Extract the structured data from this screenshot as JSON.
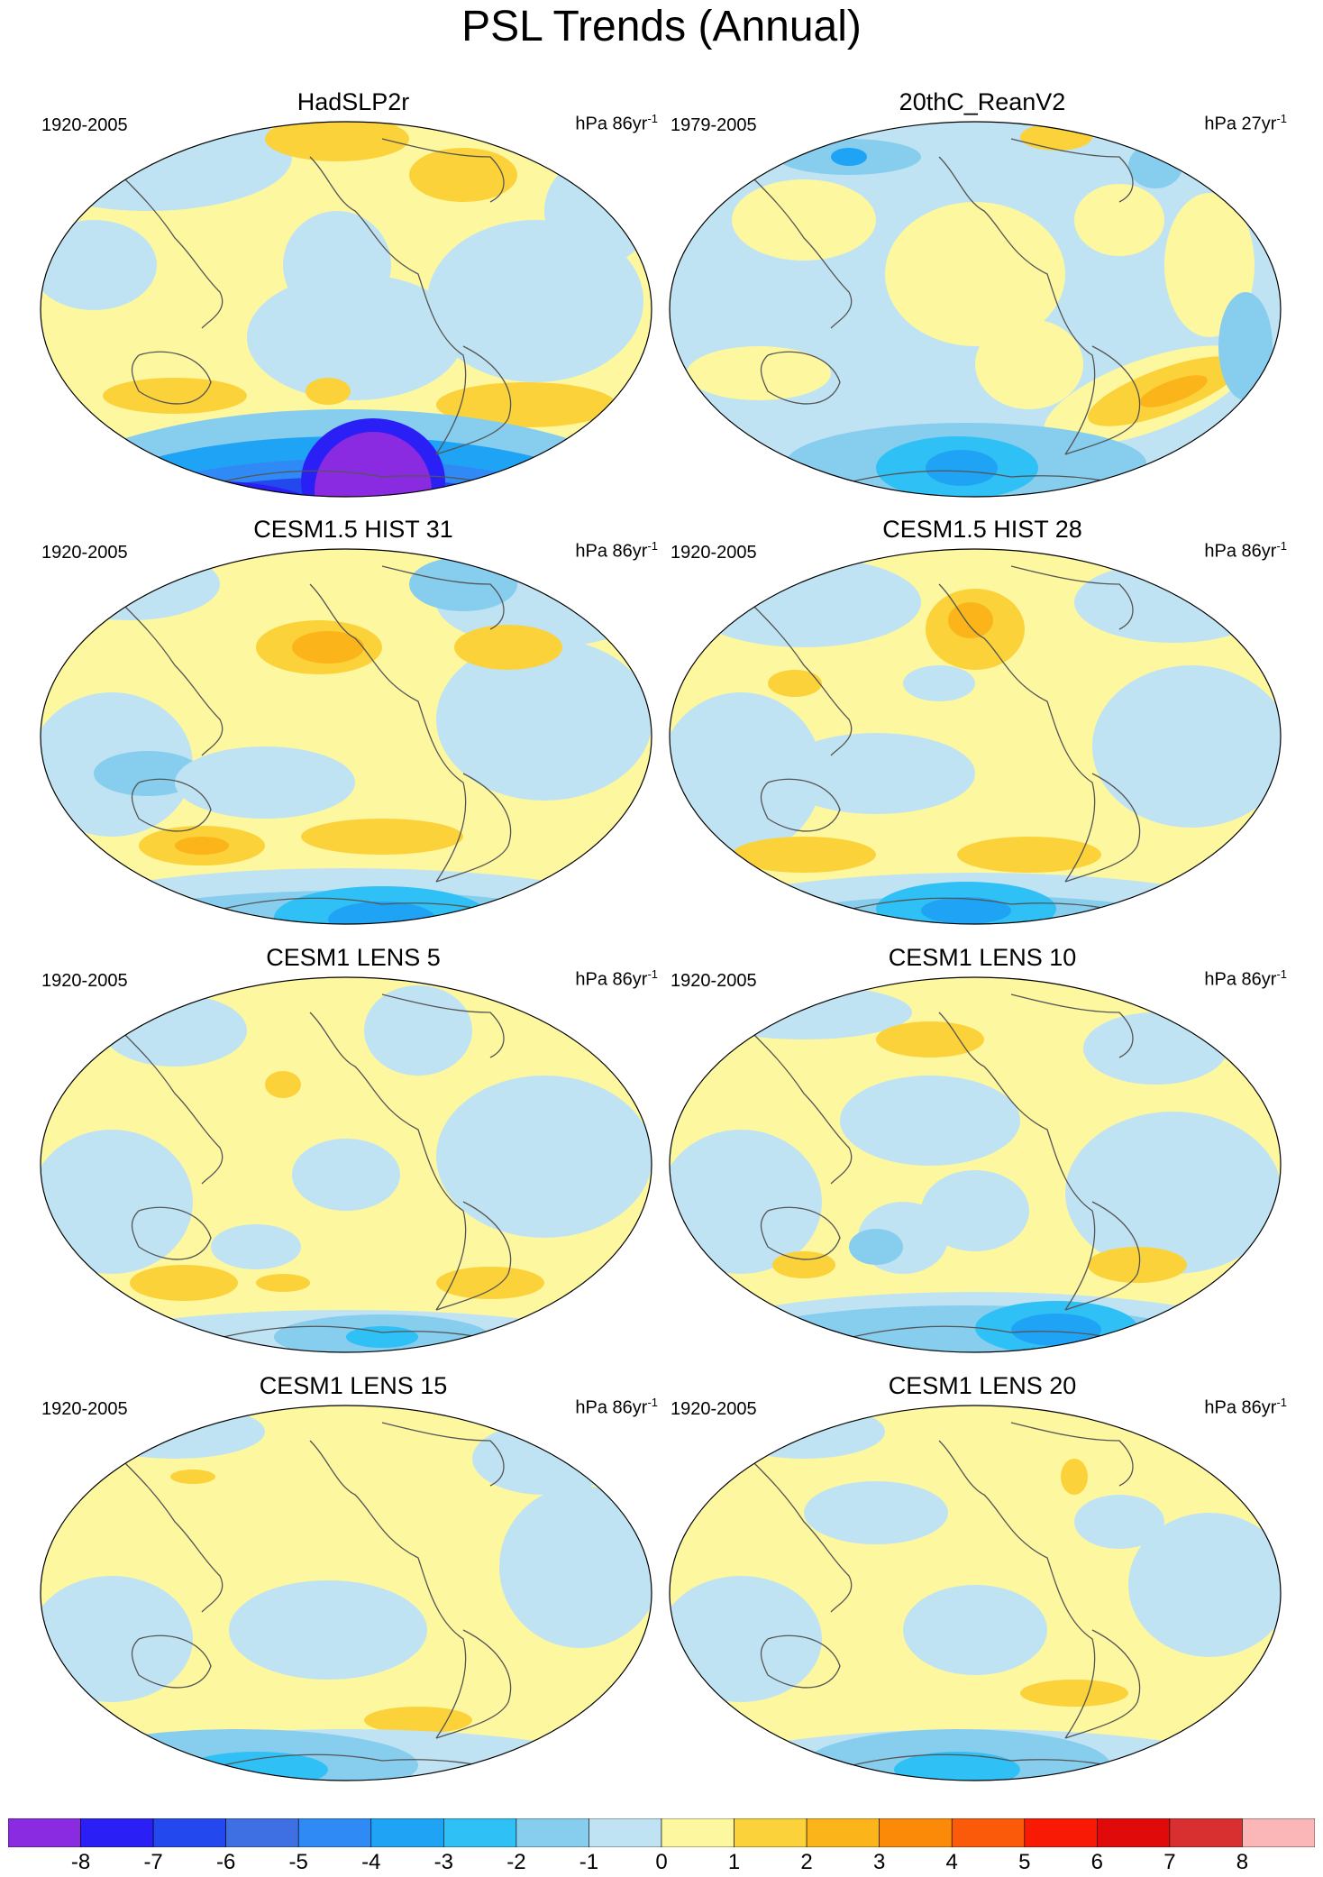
{
  "title": "PSL Trends (Annual)",
  "panels": [
    {
      "title": "HadSLP2r",
      "years": "1920-2005",
      "units": "hPa 86yr",
      "units_sup": "-1",
      "pattern": "hadslp"
    },
    {
      "title": "20thC_ReanV2",
      "years": "1979-2005",
      "units": "hPa 27yr",
      "units_sup": "-1",
      "pattern": "rean"
    },
    {
      "title": "CESM1.5 HIST 31",
      "years": "1920-2005",
      "units": "hPa 86yr",
      "units_sup": "-1",
      "pattern": "hist31"
    },
    {
      "title": "CESM1.5 HIST 28",
      "years": "1920-2005",
      "units": "hPa 86yr",
      "units_sup": "-1",
      "pattern": "hist28"
    },
    {
      "title": "CESM1 LENS 5",
      "years": "1920-2005",
      "units": "hPa 86yr",
      "units_sup": "-1",
      "pattern": "lens5"
    },
    {
      "title": "CESM1 LENS 10",
      "years": "1920-2005",
      "units": "hPa 86yr",
      "units_sup": "-1",
      "pattern": "lens10"
    },
    {
      "title": "CESM1 LENS 15",
      "years": "1920-2005",
      "units": "hPa 86yr",
      "units_sup": "-1",
      "pattern": "lens15"
    },
    {
      "title": "CESM1 LENS 20",
      "years": "1920-2005",
      "units": "hPa 86yr",
      "units_sup": "-1",
      "pattern": "lens20"
    }
  ],
  "colorbar": {
    "labels": [
      "-8",
      "-7",
      "-6",
      "-5",
      "-4",
      "-3",
      "-2",
      "-1",
      "0",
      "1",
      "2",
      "3",
      "4",
      "5",
      "6",
      "7",
      "8"
    ],
    "colors": [
      "#8a2be2",
      "#2a1ff5",
      "#2248ee",
      "#3e6fe3",
      "#2f8af5",
      "#1fa3f5",
      "#2fc0f5",
      "#86cdee",
      "#bfe3f3",
      "#fdf7a0",
      "#fbd23a",
      "#fbb419",
      "#fb8a08",
      "#fb5a0a",
      "#f91a05",
      "#e00a0a",
      "#d83030",
      "#fbb7b7"
    ]
  }
}
